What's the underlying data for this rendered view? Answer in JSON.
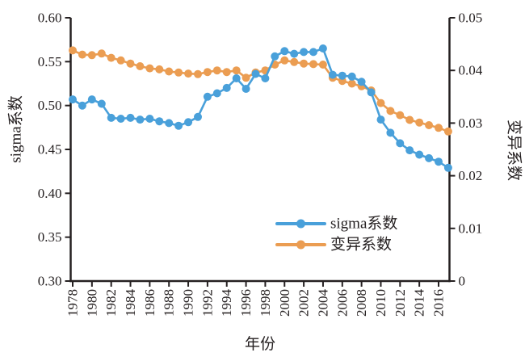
{
  "chart_data": {
    "type": "line",
    "title": "",
    "xlabel": "年份",
    "ylabel_left": "sigma系数",
    "ylabel_right": "变异系数",
    "grid": false,
    "legend_position": "inside-bottom-right",
    "x": [
      1978,
      1979,
      1980,
      1981,
      1982,
      1983,
      1984,
      1985,
      1986,
      1987,
      1988,
      1989,
      1990,
      1991,
      1992,
      1993,
      1994,
      1995,
      1996,
      1997,
      1998,
      1999,
      2000,
      2001,
      2002,
      2003,
      2004,
      2005,
      2006,
      2007,
      2008,
      2009,
      2010,
      2011,
      2012,
      2013,
      2014,
      2015,
      2016,
      2017
    ],
    "x_ticks": [
      "1978",
      "1980",
      "1982",
      "1984",
      "1986",
      "1988",
      "1990",
      "1992",
      "1994",
      "1996",
      "1998",
      "2000",
      "2002",
      "2004",
      "2006",
      "2008",
      "2010",
      "2012",
      "2014",
      "2016"
    ],
    "y_left": {
      "range": [
        0.3,
        0.6
      ],
      "tick_labels": [
        "0.60",
        "0.55",
        "0.50",
        "0.45",
        "0.40",
        "0.35",
        "0.30"
      ]
    },
    "y_right": {
      "range": [
        0,
        0.05
      ],
      "tick_labels": [
        "0.05",
        "0.04",
        "0.03",
        "0.02",
        "0.01",
        "0"
      ]
    },
    "series": [
      {
        "name": "sigma系数",
        "axis": "left",
        "color": "#49A0DA",
        "marker": "circle",
        "values": [
          0.507,
          0.5,
          0.507,
          0.502,
          0.486,
          0.485,
          0.486,
          0.484,
          0.485,
          0.482,
          0.48,
          0.477,
          0.481,
          0.487,
          0.51,
          0.514,
          0.52,
          0.531,
          0.519,
          0.536,
          0.531,
          0.556,
          0.562,
          0.559,
          0.561,
          0.561,
          0.565,
          0.535,
          0.534,
          0.533,
          0.527,
          0.515,
          0.484,
          0.469,
          0.457,
          0.449,
          0.444,
          0.44,
          0.436,
          0.429
        ]
      },
      {
        "name": "变异系数",
        "axis": "right",
        "color": "#EB9D52",
        "marker": "circle",
        "values": [
          0.0438,
          0.043,
          0.0429,
          0.0432,
          0.0424,
          0.0419,
          0.0413,
          0.0408,
          0.0404,
          0.0402,
          0.0398,
          0.0396,
          0.0394,
          0.0393,
          0.0397,
          0.04,
          0.0397,
          0.04,
          0.0386,
          0.0396,
          0.04,
          0.0411,
          0.0419,
          0.0416,
          0.0413,
          0.0412,
          0.0411,
          0.0386,
          0.038,
          0.0375,
          0.037,
          0.0362,
          0.0338,
          0.0323,
          0.0315,
          0.0306,
          0.0301,
          0.0296,
          0.0291,
          0.0284
        ]
      }
    ]
  },
  "colors": {
    "axis": "#252021",
    "text": "#252021",
    "background": "#FFFFFF",
    "series_blue": "#49A0DA",
    "series_orange": "#EB9D52"
  }
}
